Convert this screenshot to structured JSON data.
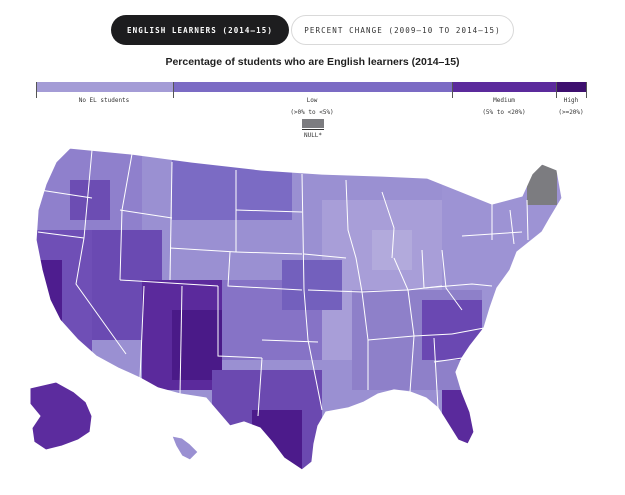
{
  "tabs": [
    {
      "label": "ENGLISH LEARNERS (2014–15)",
      "active": true
    },
    {
      "label": "PERCENT CHANGE (2009–10 TO 2014–15)",
      "active": false
    }
  ],
  "map": {
    "title": "Percentage of students who are English learners (2014–15)"
  },
  "legend": {
    "categories": [
      {
        "label": "No EL students",
        "range": "",
        "color": "#a49cd6"
      },
      {
        "label": "Low",
        "range": "(>0% to <5%)",
        "color": "#7b6bc4"
      },
      {
        "label": "Medium",
        "range": "(5% to <20%)",
        "color": "#5b2a9c"
      },
      {
        "label": "High",
        "range": "(>=20%)",
        "color": "#3d0f6e"
      }
    ],
    "null_label": "NULL*",
    "null_color": "#7c7c80"
  },
  "colors": {
    "background": "#ffffff",
    "state_border": "#ffffff",
    "tab_active_bg": "#1d1d1f"
  }
}
